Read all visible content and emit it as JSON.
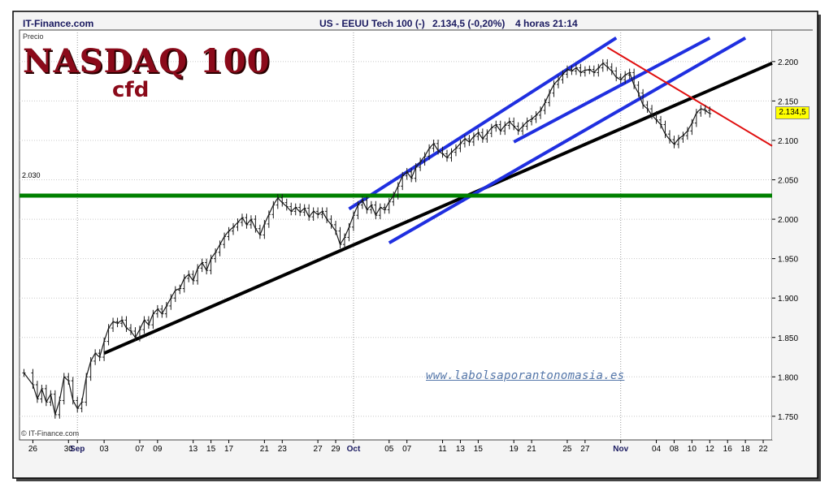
{
  "header": {
    "brand": "IT-Finance.com",
    "instrument": "US - EEUU Tech 100 (-)",
    "price": "2.134,5 (-0,20%)",
    "timeframe": "4 horas",
    "time": "21:14"
  },
  "labels": {
    "ylabel": "Precio",
    "title": "NASDAQ 100",
    "subtitle": "cfd",
    "watermark": "www.labolsaporantonomasia.es",
    "copyright": "© IT-Finance.com",
    "last_price": "2.134,5",
    "level_label": "2.030"
  },
  "colors": {
    "channel": "#1f2fe0",
    "support": "#000000",
    "horizontal": "#008000",
    "downtrend": "#e01010",
    "title": "#8b0a1a",
    "last_price_bg": "#ffff00"
  },
  "chart_data": {
    "type": "line",
    "title": "NASDAQ 100",
    "subtitle": "cfd",
    "ylabel": "Precio",
    "ylim": [
      1720,
      2240
    ],
    "yticks": [
      {
        "value": 1750,
        "label": "1.750"
      },
      {
        "value": 1800,
        "label": "1.800"
      },
      {
        "value": 1850,
        "label": "1.850"
      },
      {
        "value": 1900,
        "label": "1.900"
      },
      {
        "value": 1950,
        "label": "1.950"
      },
      {
        "value": 2000,
        "label": "2.000"
      },
      {
        "value": 2050,
        "label": "2.050"
      },
      {
        "value": 2100,
        "label": "2.100"
      },
      {
        "value": 2150,
        "label": "2.150"
      },
      {
        "value": 2200,
        "label": "2.200"
      }
    ],
    "xticks": [
      {
        "day": 0,
        "label": "26"
      },
      {
        "day": 4,
        "label": "30"
      },
      {
        "day": 5,
        "label": "Sep",
        "month": true
      },
      {
        "day": 8,
        "label": "03"
      },
      {
        "day": 12,
        "label": "07"
      },
      {
        "day": 14,
        "label": "09"
      },
      {
        "day": 18,
        "label": "13"
      },
      {
        "day": 20,
        "label": "15"
      },
      {
        "day": 22,
        "label": "17"
      },
      {
        "day": 26,
        "label": "21"
      },
      {
        "day": 28,
        "label": "23"
      },
      {
        "day": 32,
        "label": "27"
      },
      {
        "day": 34,
        "label": "29"
      },
      {
        "day": 36,
        "label": "Oct",
        "month": true
      },
      {
        "day": 40,
        "label": "05"
      },
      {
        "day": 42,
        "label": "07"
      },
      {
        "day": 46,
        "label": "11"
      },
      {
        "day": 48,
        "label": "13"
      },
      {
        "day": 50,
        "label": "15"
      },
      {
        "day": 54,
        "label": "19"
      },
      {
        "day": 56,
        "label": "21"
      },
      {
        "day": 60,
        "label": "25"
      },
      {
        "day": 62,
        "label": "27"
      },
      {
        "day": 66,
        "label": "Nov",
        "month": true
      },
      {
        "day": 70,
        "label": "04"
      },
      {
        "day": 72,
        "label": "08"
      },
      {
        "day": 74,
        "label": "10"
      },
      {
        "day": 76,
        "label": "12"
      },
      {
        "day": 78,
        "label": "16"
      },
      {
        "day": 80,
        "label": "18"
      },
      {
        "day": 82,
        "label": "22"
      }
    ],
    "xlim": [
      -1.5,
      83
    ],
    "vgrid_days": [
      5,
      36,
      66
    ],
    "series": [
      {
        "values": [
          [
            -1,
            1805
          ],
          [
            0,
            1790
          ],
          [
            0.5,
            1772
          ],
          [
            1,
            1785
          ],
          [
            1.5,
            1768
          ],
          [
            2,
            1778
          ],
          [
            2.5,
            1752
          ],
          [
            3,
            1770
          ],
          [
            3.5,
            1800
          ],
          [
            4,
            1795
          ],
          [
            4.5,
            1770
          ],
          [
            5,
            1760
          ],
          [
            5.5,
            1768
          ],
          [
            6,
            1800
          ],
          [
            6.5,
            1820
          ],
          [
            7,
            1830
          ],
          [
            7.5,
            1825
          ],
          [
            8,
            1845
          ],
          [
            8.5,
            1862
          ],
          [
            9,
            1870
          ],
          [
            9.5,
            1868
          ],
          [
            10,
            1872
          ],
          [
            10.5,
            1862
          ],
          [
            11,
            1858
          ],
          [
            11.5,
            1850
          ],
          [
            12,
            1860
          ],
          [
            12.5,
            1872
          ],
          [
            13,
            1866
          ],
          [
            13.5,
            1880
          ],
          [
            14,
            1886
          ],
          [
            14.5,
            1880
          ],
          [
            15,
            1890
          ],
          [
            15.5,
            1900
          ],
          [
            16,
            1910
          ],
          [
            16.5,
            1912
          ],
          [
            17,
            1925
          ],
          [
            17.5,
            1930
          ],
          [
            18,
            1922
          ],
          [
            18.5,
            1938
          ],
          [
            19,
            1945
          ],
          [
            19.5,
            1935
          ],
          [
            20,
            1950
          ],
          [
            20.5,
            1958
          ],
          [
            21,
            1968
          ],
          [
            21.5,
            1978
          ],
          [
            22,
            1985
          ],
          [
            22.5,
            1990
          ],
          [
            23,
            1996
          ],
          [
            23.5,
            2002
          ],
          [
            24,
            1993
          ],
          [
            24.5,
            2000
          ],
          [
            25,
            1988
          ],
          [
            25.5,
            1980
          ],
          [
            26,
            1994
          ],
          [
            26.5,
            2006
          ],
          [
            27,
            2018
          ],
          [
            27.5,
            2027
          ],
          [
            28,
            2021
          ],
          [
            28.5,
            2016
          ],
          [
            29,
            2010
          ],
          [
            29.5,
            2015
          ],
          [
            30,
            2009
          ],
          [
            30.5,
            2014
          ],
          [
            31,
            2003
          ],
          [
            31.5,
            2010
          ],
          [
            32,
            2006
          ],
          [
            32.5,
            2010
          ],
          [
            33,
            2000
          ],
          [
            33.5,
            1993
          ],
          [
            34,
            1985
          ],
          [
            34.5,
            1968
          ],
          [
            35,
            1977
          ],
          [
            35.5,
            1990
          ],
          [
            36,
            2005
          ],
          [
            36.5,
            2018
          ],
          [
            37,
            2024
          ],
          [
            37.5,
            2012
          ],
          [
            38,
            2018
          ],
          [
            38.5,
            2005
          ],
          [
            39,
            2015
          ],
          [
            39.5,
            2012
          ],
          [
            40,
            2022
          ],
          [
            40.5,
            2030
          ],
          [
            41,
            2042
          ],
          [
            41.5,
            2055
          ],
          [
            42,
            2060
          ],
          [
            42.5,
            2052
          ],
          [
            43,
            2066
          ],
          [
            43.5,
            2073
          ],
          [
            44,
            2080
          ],
          [
            44.5,
            2090
          ],
          [
            45,
            2096
          ],
          [
            45.5,
            2087
          ],
          [
            46,
            2083
          ],
          [
            46.5,
            2078
          ],
          [
            47,
            2085
          ],
          [
            47.5,
            2090
          ],
          [
            48,
            2096
          ],
          [
            48.5,
            2102
          ],
          [
            49,
            2098
          ],
          [
            49.5,
            2105
          ],
          [
            50,
            2110
          ],
          [
            50.5,
            2102
          ],
          [
            51,
            2109
          ],
          [
            51.5,
            2116
          ],
          [
            52,
            2120
          ],
          [
            52.5,
            2112
          ],
          [
            53,
            2119
          ],
          [
            53.5,
            2124
          ],
          [
            54,
            2118
          ],
          [
            54.5,
            2112
          ],
          [
            55,
            2118
          ],
          [
            55.5,
            2124
          ],
          [
            56,
            2127
          ],
          [
            56.5,
            2132
          ],
          [
            57,
            2138
          ],
          [
            57.5,
            2148
          ],
          [
            58,
            2160
          ],
          [
            58.5,
            2171
          ],
          [
            59,
            2177
          ],
          [
            59.5,
            2184
          ],
          [
            60,
            2190
          ],
          [
            60.5,
            2188
          ],
          [
            61,
            2192
          ],
          [
            61.5,
            2186
          ],
          [
            62,
            2189
          ],
          [
            62.5,
            2190
          ],
          [
            63,
            2186
          ],
          [
            63.5,
            2192
          ],
          [
            64,
            2198
          ],
          [
            64.5,
            2193
          ],
          [
            65,
            2188
          ],
          [
            65.5,
            2180
          ],
          [
            66,
            2177
          ],
          [
            66.5,
            2183
          ],
          [
            67,
            2186
          ],
          [
            67.5,
            2170
          ],
          [
            68,
            2160
          ],
          [
            68.5,
            2145
          ],
          [
            69,
            2140
          ],
          [
            69.5,
            2132
          ],
          [
            70,
            2126
          ],
          [
            70.5,
            2120
          ],
          [
            71,
            2108
          ],
          [
            71.5,
            2101
          ],
          [
            72,
            2095
          ],
          [
            72.5,
            2102
          ],
          [
            73,
            2106
          ],
          [
            73.5,
            2112
          ],
          [
            74,
            2122
          ],
          [
            74.5,
            2135
          ],
          [
            75,
            2140
          ],
          [
            75.5,
            2138
          ],
          [
            76,
            2134
          ]
        ]
      }
    ],
    "lines": [
      {
        "kind": "support",
        "from": [
          8,
          1830
        ],
        "to": [
          83,
          2198
        ]
      },
      {
        "kind": "channel-upper",
        "from": [
          35.5,
          2013
        ],
        "to": [
          65.5,
          2230
        ]
      },
      {
        "kind": "channel-mid",
        "from": [
          54,
          2098
        ],
        "to": [
          76,
          2230
        ]
      },
      {
        "kind": "channel-lower",
        "from": [
          40,
          1970
        ],
        "to": [
          80,
          2230
        ]
      },
      {
        "kind": "horizontal",
        "from": [
          -1.5,
          2030
        ],
        "to": [
          83,
          2030
        ]
      },
      {
        "kind": "downtrend",
        "from": [
          64.5,
          2218
        ],
        "to": [
          83,
          2093
        ]
      }
    ],
    "last_price": 2134.5,
    "grid": true
  }
}
